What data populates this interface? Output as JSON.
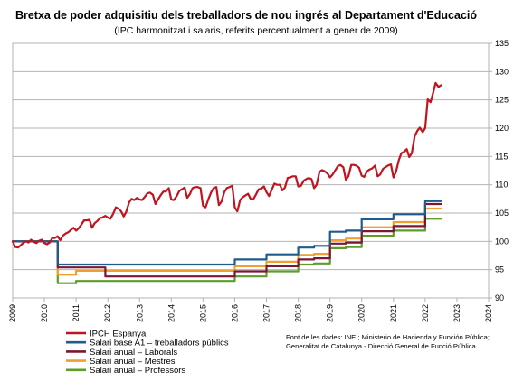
{
  "chart_data": {
    "type": "line",
    "title": "Bretxa de poder adquisitiu dels treballadors de nou ingrés al Departament d'Educació",
    "subtitle": "(IPC harmonitzat i salaris, referits percentualment a gener de 2009)",
    "xlabel": "",
    "ylabel": "",
    "xlim": [
      2009,
      2024
    ],
    "ylim": [
      90,
      135
    ],
    "y_ticks": [
      90,
      95,
      100,
      105,
      110,
      115,
      120,
      125,
      130,
      135
    ],
    "x_ticks": [
      "2009",
      "2010",
      "2011",
      "2012",
      "2013",
      "2014",
      "2015",
      "2016",
      "2017",
      "2018",
      "2019",
      "2020",
      "2021",
      "2022",
      "2023",
      "2024"
    ],
    "x_tick_values": [
      2009,
      2010,
      2011,
      2012,
      2013,
      2014,
      2015,
      2016,
      2017,
      2018,
      2019,
      2020,
      2021,
      2022,
      2023,
      2024
    ],
    "y_axis_side": "right",
    "grid": "horizontal",
    "legend_position": "bottom-left",
    "series": [
      {
        "name": "IPCH Espanya",
        "color": "#c0141e",
        "x": [
          2009.0,
          2009.08,
          2009.17,
          2009.25,
          2009.33,
          2009.42,
          2009.5,
          2009.58,
          2009.67,
          2009.75,
          2009.83,
          2009.92,
          2010.0,
          2010.08,
          2010.17,
          2010.25,
          2010.33,
          2010.42,
          2010.5,
          2010.58,
          2010.67,
          2010.75,
          2010.83,
          2010.92,
          2011.0,
          2011.08,
          2011.17,
          2011.25,
          2011.33,
          2011.42,
          2011.5,
          2011.58,
          2011.67,
          2011.75,
          2011.83,
          2011.92,
          2012.0,
          2012.08,
          2012.17,
          2012.25,
          2012.33,
          2012.42,
          2012.5,
          2012.58,
          2012.67,
          2012.75,
          2012.83,
          2012.92,
          2013.0,
          2013.08,
          2013.17,
          2013.25,
          2013.33,
          2013.42,
          2013.5,
          2013.58,
          2013.67,
          2013.75,
          2013.83,
          2013.92,
          2014.0,
          2014.08,
          2014.17,
          2014.25,
          2014.33,
          2014.42,
          2014.5,
          2014.58,
          2014.67,
          2014.75,
          2014.83,
          2014.92,
          2015.0,
          2015.08,
          2015.17,
          2015.25,
          2015.33,
          2015.42,
          2015.5,
          2015.58,
          2015.67,
          2015.75,
          2015.83,
          2015.92,
          2016.0,
          2016.08,
          2016.17,
          2016.25,
          2016.33,
          2016.42,
          2016.5,
          2016.58,
          2016.67,
          2016.75,
          2016.83,
          2016.92,
          2017.0,
          2017.08,
          2017.17,
          2017.25,
          2017.33,
          2017.42,
          2017.5,
          2017.58,
          2017.67,
          2017.75,
          2017.83,
          2017.92,
          2018.0,
          2018.08,
          2018.17,
          2018.25,
          2018.33,
          2018.42,
          2018.5,
          2018.58,
          2018.67,
          2018.75,
          2018.83,
          2018.92,
          2019.0,
          2019.08,
          2019.17,
          2019.25,
          2019.33,
          2019.42,
          2019.5,
          2019.58,
          2019.67,
          2019.75,
          2019.83,
          2019.92,
          2020.0,
          2020.08,
          2020.17,
          2020.25,
          2020.33,
          2020.42,
          2020.5,
          2020.58,
          2020.67,
          2020.75,
          2020.83,
          2020.92,
          2021.0,
          2021.08,
          2021.17,
          2021.25,
          2021.33,
          2021.42,
          2021.5,
          2021.58,
          2021.67,
          2021.75,
          2021.83,
          2021.92,
          2022.0,
          2022.08,
          2022.17,
          2022.25,
          2022.33,
          2022.42,
          2022.5
        ],
        "values": [
          100.0,
          99.0,
          98.9,
          99.3,
          99.7,
          100.0,
          99.8,
          100.3,
          99.9,
          99.7,
          100.1,
          100.3,
          99.7,
          99.5,
          99.8,
          100.6,
          100.6,
          100.9,
          100.2,
          101.0,
          101.4,
          101.6,
          102.0,
          102.4,
          101.9,
          102.3,
          103.0,
          103.7,
          103.7,
          103.8,
          102.4,
          103.2,
          103.6,
          104.1,
          104.2,
          104.5,
          104.2,
          104.0,
          104.9,
          106.0,
          105.8,
          105.3,
          104.4,
          105.2,
          106.9,
          107.5,
          107.3,
          107.7,
          107.4,
          107.3,
          107.9,
          108.5,
          108.6,
          108.2,
          106.6,
          107.4,
          108.2,
          108.8,
          108.8,
          109.4,
          107.4,
          107.3,
          108.0,
          108.9,
          109.2,
          109.5,
          107.7,
          108.3,
          109.4,
          109.6,
          109.6,
          109.4,
          106.3,
          106.0,
          107.5,
          108.6,
          109.4,
          109.6,
          106.4,
          107.0,
          108.7,
          109.4,
          109.6,
          109.8,
          106.0,
          105.3,
          107.3,
          107.8,
          108.1,
          108.4,
          107.5,
          107.4,
          108.3,
          109.2,
          109.3,
          109.7,
          108.7,
          108.0,
          109.2,
          110.2,
          110.0,
          110.0,
          109.0,
          109.5,
          111.2,
          111.3,
          111.5,
          111.5,
          109.7,
          109.8,
          110.7,
          111.0,
          111.2,
          111.0,
          109.4,
          110.0,
          112.3,
          112.6,
          112.4,
          112.0,
          111.3,
          111.8,
          112.6,
          113.3,
          113.5,
          113.1,
          110.9,
          111.5,
          113.5,
          113.5,
          113.4,
          113.0,
          111.6,
          111.4,
          112.4,
          112.7,
          112.9,
          113.4,
          111.5,
          111.8,
          112.8,
          113.1,
          113.4,
          113.6,
          111.3,
          112.3,
          114.4,
          115.6,
          115.8,
          116.3,
          114.9,
          115.6,
          118.6,
          119.5,
          120.1,
          119.3,
          120.0,
          125.1,
          124.6,
          126.2,
          128.0,
          127.3,
          127.6
        ]
      },
      {
        "name": "Salari base A1 – treballadors públics",
        "color": "#1f5b8c",
        "x": [
          2009.0,
          2010.42,
          2010.42,
          2016.0,
          2016.0,
          2017.0,
          2017.0,
          2018.0,
          2018.0,
          2018.5,
          2018.5,
          2019.0,
          2019.0,
          2019.5,
          2019.5,
          2020.0,
          2020.0,
          2021.0,
          2021.0,
          2022.0,
          2022.0,
          2022.5
        ],
        "values": [
          100.0,
          100.0,
          95.9,
          95.9,
          96.8,
          96.8,
          97.7,
          97.7,
          98.9,
          98.9,
          99.2,
          99.2,
          101.7,
          101.7,
          101.9,
          101.9,
          103.9,
          103.9,
          104.8,
          104.8,
          107.1,
          107.1
        ]
      },
      {
        "name": "Salari anual – Laborals",
        "color": "#7a1832",
        "x": [
          2009.0,
          2010.42,
          2010.42,
          2011.92,
          2011.92,
          2016.0,
          2016.0,
          2017.0,
          2017.0,
          2018.0,
          2018.0,
          2018.5,
          2018.5,
          2019.0,
          2019.0,
          2019.5,
          2019.5,
          2020.0,
          2020.0,
          2021.0,
          2021.0,
          2022.0,
          2022.0,
          2022.5
        ],
        "values": [
          100.0,
          100.0,
          95.4,
          95.4,
          93.8,
          93.8,
          94.7,
          94.7,
          95.6,
          95.6,
          96.8,
          96.8,
          97.0,
          97.0,
          99.6,
          99.6,
          99.8,
          99.8,
          101.8,
          101.8,
          102.7,
          102.7,
          106.6,
          106.6
        ]
      },
      {
        "name": "Salari anual – Mestres",
        "color": "#f0a030",
        "x": [
          2009.0,
          2010.42,
          2010.42,
          2011.0,
          2011.0,
          2016.0,
          2016.0,
          2017.0,
          2017.0,
          2018.0,
          2018.0,
          2018.5,
          2018.5,
          2019.0,
          2019.0,
          2019.5,
          2019.5,
          2020.0,
          2020.0,
          2021.0,
          2021.0,
          2022.0,
          2022.0,
          2022.5
        ],
        "values": [
          100.0,
          100.0,
          94.1,
          94.1,
          94.8,
          94.8,
          95.6,
          95.6,
          96.4,
          96.4,
          97.6,
          97.6,
          97.8,
          97.8,
          100.2,
          100.2,
          100.5,
          100.5,
          102.5,
          102.5,
          103.4,
          103.4,
          105.8,
          105.8
        ]
      },
      {
        "name": "Salari anual – Professors",
        "color": "#5e9d2c",
        "x": [
          2009.0,
          2010.42,
          2010.42,
          2011.0,
          2011.0,
          2016.0,
          2016.0,
          2017.0,
          2017.0,
          2018.0,
          2018.0,
          2018.5,
          2018.5,
          2019.0,
          2019.0,
          2019.5,
          2019.5,
          2020.0,
          2020.0,
          2021.0,
          2021.0,
          2022.0,
          2022.0,
          2022.5
        ],
        "values": [
          100.0,
          100.0,
          92.6,
          92.6,
          93.0,
          93.0,
          93.8,
          93.8,
          94.7,
          94.7,
          95.9,
          95.9,
          96.1,
          96.1,
          98.8,
          98.8,
          99.0,
          99.0,
          101.0,
          101.0,
          101.9,
          101.9,
          104.0,
          104.0
        ]
      }
    ]
  },
  "source": {
    "line1": "Font de les dades: INE ; Ministerio de Hacienda y Función Pública;",
    "line2": "Generalitat de Catalunya - Direcció General de Funció Pública"
  }
}
